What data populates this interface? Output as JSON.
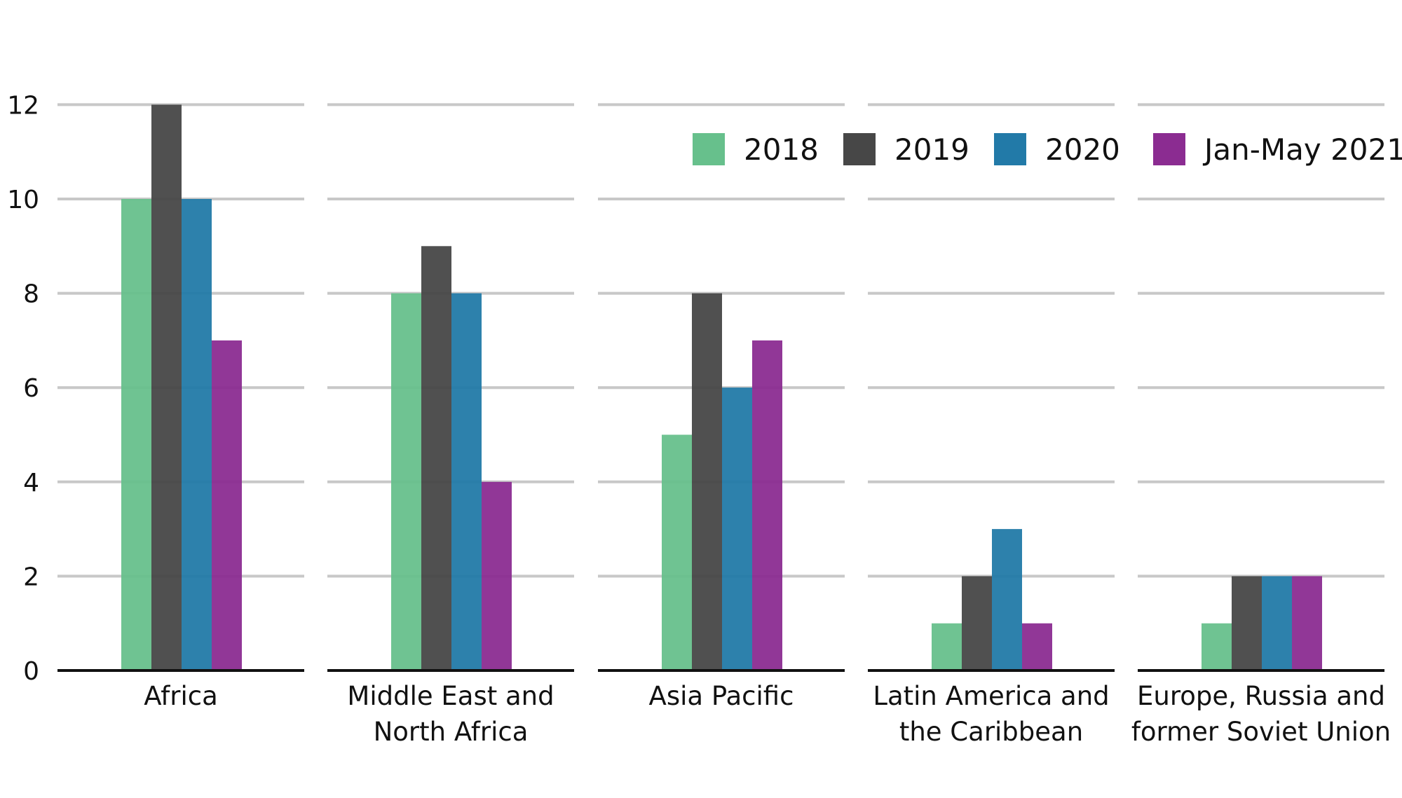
{
  "chart_data": {
    "type": "bar",
    "title": "",
    "xlabel": "",
    "ylabel": "",
    "ylim": [
      0,
      12
    ],
    "yticks": [
      "0",
      "2",
      "4",
      "6",
      "8",
      "10",
      "12"
    ],
    "grid": true,
    "legend_position": "top-right",
    "categories": [
      [
        "Africa"
      ],
      [
        "Middle East and",
        "North Africa"
      ],
      [
        "Asia Pacific"
      ],
      [
        "Latin America and",
        "the Caribbean"
      ],
      [
        "Europe, Russia and",
        "former Soviet Union"
      ]
    ],
    "series": [
      {
        "name": "2018",
        "color": "#67c08c",
        "values": [
          10,
          8,
          5,
          1,
          1
        ]
      },
      {
        "name": "2019",
        "color": "#474747",
        "values": [
          12,
          9,
          8,
          2,
          2
        ]
      },
      {
        "name": "2020",
        "color": "#227aa8",
        "values": [
          10,
          8,
          6,
          3,
          2
        ]
      },
      {
        "name": "Jan-May 2021",
        "color": "#8b2c91",
        "values": [
          7,
          4,
          7,
          1,
          2
        ]
      }
    ]
  }
}
